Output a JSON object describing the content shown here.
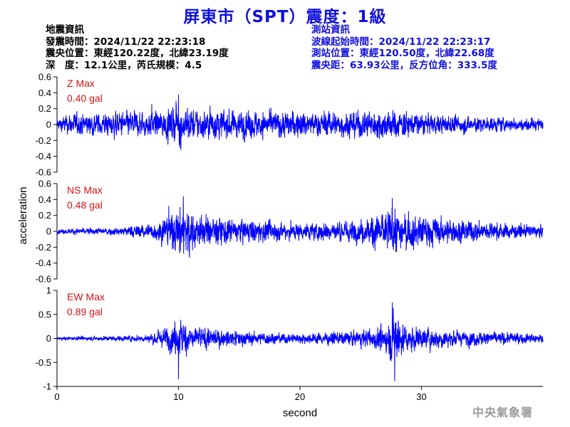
{
  "header": {
    "title": "屏東市（SPT）震度：1級"
  },
  "earthquake_info": {
    "heading": "地震資訊",
    "origin_time": "發震時間：2024/11/22 22:23:18",
    "epicenter": "震央位置：東經120.22度，北緯23.19度",
    "depth_magnitude": "深　度：12.1公里，芮氏規模：4.5"
  },
  "station_info": {
    "heading": "測站資訊",
    "wave_start": "波線起始時間：2024/11/22 22:23:17",
    "station_location": "測站位置：東經120.50度，北緯22.68度",
    "distance": "震央距：63.93公里，反方位角：333.5度"
  },
  "watermark": "中央氣象署",
  "colors": {
    "title": "#1010e0",
    "trace": "#0000ff",
    "max_label": "#e01010",
    "station_text": "#1010e0"
  },
  "chart_data": {
    "type": "line",
    "xlabel": "second",
    "ylabel": "acceleration",
    "xlim": [
      0,
      40
    ],
    "x_ticks": [
      0,
      10,
      20,
      30
    ],
    "duration": 40,
    "panels": [
      {
        "component": "Z",
        "max_label": "Z Max",
        "max_value": "0.40 gal",
        "ylim": [
          -0.6,
          0.6
        ],
        "y_ticks": [
          0.6,
          0.4,
          0.2,
          0,
          -0.2,
          -0.4,
          -0.6
        ],
        "y_tick_labels": [
          "0.6",
          "0.4",
          "0.2",
          "0",
          "-0.2",
          "-0.4",
          "-0.6"
        ],
        "peak": 0.4,
        "noise": 0.05,
        "envelope": [
          [
            0,
            0.25
          ],
          [
            1,
            0.45
          ],
          [
            9,
            0.6
          ],
          [
            10,
            0.85
          ],
          [
            11,
            0.65
          ],
          [
            22,
            0.55
          ],
          [
            27,
            0.6
          ],
          [
            28,
            0.65
          ],
          [
            30,
            0.45
          ],
          [
            36,
            0.3
          ],
          [
            40,
            0.25
          ]
        ],
        "spikes": [
          [
            10.0,
            0.38
          ],
          [
            10.2,
            -0.32
          ],
          [
            9.8,
            0.3
          ],
          [
            7.8,
            0.26
          ],
          [
            12.6,
            0.24
          ]
        ]
      },
      {
        "component": "NS",
        "max_label": "NS Max",
        "max_value": "0.48 gal",
        "ylim": [
          -0.6,
          0.6
        ],
        "y_ticks": [
          0.6,
          0.4,
          0.2,
          0,
          -0.2,
          -0.4,
          -0.6
        ],
        "y_tick_labels": [
          "0.6",
          "0.4",
          "0.2",
          "0",
          "-0.2",
          "-0.4",
          "-0.6"
        ],
        "peak": 0.48,
        "noise": 0.02,
        "envelope": [
          [
            0,
            0.08
          ],
          [
            5,
            0.15
          ],
          [
            8,
            0.3
          ],
          [
            9,
            0.55
          ],
          [
            10.5,
            0.9
          ],
          [
            11.5,
            0.6
          ],
          [
            15,
            0.45
          ],
          [
            20,
            0.3
          ],
          [
            25,
            0.4
          ],
          [
            27.5,
            0.8
          ],
          [
            28.5,
            0.65
          ],
          [
            33,
            0.4
          ],
          [
            40,
            0.2
          ]
        ],
        "spikes": [
          [
            10.4,
            0.44
          ],
          [
            10.9,
            -0.46
          ],
          [
            10.1,
            -0.38
          ],
          [
            27.6,
            0.42
          ],
          [
            27.9,
            -0.42
          ],
          [
            9.2,
            0.32
          ]
        ]
      },
      {
        "component": "EW",
        "max_label": "EW Max",
        "max_value": "0.89 gal",
        "ylim": [
          -1,
          1
        ],
        "y_ticks": [
          1,
          0.5,
          0,
          -0.5,
          -1
        ],
        "y_tick_labels": [
          "1",
          "0.5",
          "0",
          "-0.5",
          "-1"
        ],
        "peak": 0.89,
        "noise": 0.03,
        "envelope": [
          [
            0,
            0.04
          ],
          [
            5,
            0.08
          ],
          [
            7.5,
            0.12
          ],
          [
            8.5,
            0.3
          ],
          [
            9.5,
            0.45
          ],
          [
            10.2,
            0.65
          ],
          [
            11,
            0.4
          ],
          [
            14,
            0.25
          ],
          [
            20,
            0.15
          ],
          [
            25,
            0.25
          ],
          [
            27,
            0.45
          ],
          [
            27.8,
            0.8
          ],
          [
            29,
            0.4
          ],
          [
            33,
            0.25
          ],
          [
            40,
            0.15
          ]
        ],
        "spikes": [
          [
            10.0,
            -0.85
          ],
          [
            9.7,
            0.42
          ],
          [
            27.8,
            -0.89
          ],
          [
            27.6,
            0.75
          ],
          [
            28.1,
            0.55
          ]
        ]
      }
    ]
  }
}
